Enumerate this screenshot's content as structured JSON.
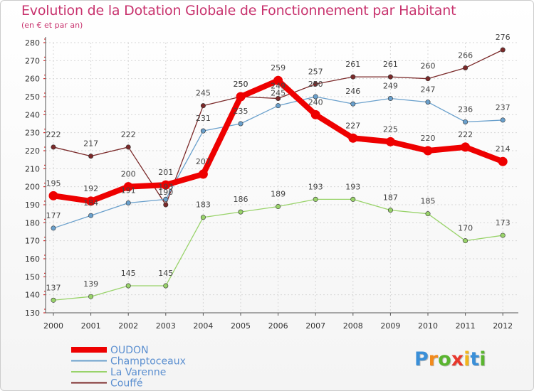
{
  "chart_data": {
    "type": "line",
    "title": "Evolution de la Dotation Globale de Fonctionnement par Habitant",
    "subtitle": "(en € et par an)",
    "x": [
      "2000",
      "2001",
      "2002",
      "2003",
      "2004",
      "2005",
      "2006",
      "2007",
      "2008",
      "2009",
      "2010",
      "2011",
      "2012"
    ],
    "ylim": [
      130,
      280
    ],
    "yticks": [
      130,
      140,
      150,
      160,
      170,
      180,
      190,
      200,
      210,
      220,
      230,
      240,
      250,
      260,
      270,
      280
    ],
    "grid": true,
    "legend_position": "bottom-left",
    "series": [
      {
        "name": "OUDON",
        "color": "#ee0000",
        "values": [
          195,
          192,
          200,
          201,
          207,
          250,
          259,
          240,
          227,
          225,
          220,
          222,
          214
        ],
        "labels": [
          "195",
          "192",
          "200",
          "201",
          "207",
          "250",
          "259",
          "240",
          "227",
          "225",
          "220",
          "222",
          "214"
        ]
      },
      {
        "name": "Champtoceaux",
        "color": "#6aa0cc",
        "values": [
          177,
          184,
          191,
          193,
          231,
          235,
          245,
          250,
          246,
          249,
          247,
          236,
          237
        ],
        "labels": [
          "177",
          "184",
          "191",
          "193",
          "231",
          "235",
          "245",
          "250",
          "246",
          "249",
          "247",
          "236",
          "237"
        ]
      },
      {
        "name": "La Varenne",
        "color": "#99d36a",
        "values": [
          137,
          139,
          145,
          145,
          183,
          186,
          189,
          193,
          193,
          187,
          185,
          170,
          173
        ],
        "labels": [
          "137",
          "139",
          "145",
          "145",
          "183",
          "186",
          "189",
          "193",
          "193",
          "187",
          "185",
          "170",
          "173"
        ]
      },
      {
        "name": "Couffé",
        "color": "#7b2a2a",
        "values": [
          222,
          217,
          222,
          190,
          245,
          250,
          249,
          257,
          261,
          261,
          260,
          266,
          276
        ],
        "labels": [
          "222",
          "217",
          "222",
          "190",
          "245",
          "250",
          "249",
          "257",
          "261",
          "261",
          "260",
          "266",
          "276"
        ]
      }
    ]
  },
  "brand": {
    "letters": [
      "P",
      "r",
      "o",
      "x",
      "i",
      "t",
      "i"
    ],
    "colors": [
      "#3a8fd8",
      "#f28a1c",
      "#5ab52f",
      "#e8372c",
      "#f2b51c",
      "#3a8fd8",
      "#5ab52f"
    ]
  }
}
